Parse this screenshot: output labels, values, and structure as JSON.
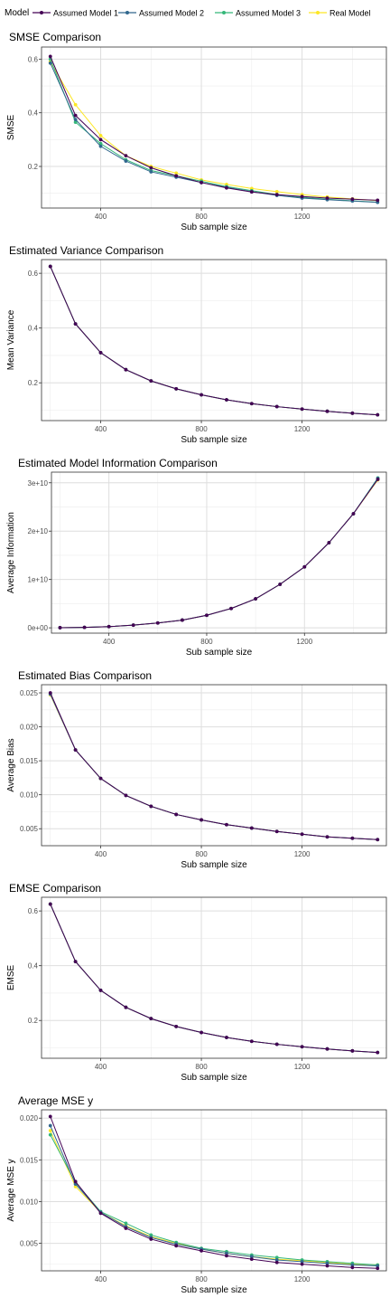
{
  "legend": {
    "title": "Model",
    "items": [
      {
        "label": "Assumed Model 1",
        "color": "#440154"
      },
      {
        "label": "Assumed Model 2",
        "color": "#31688e"
      },
      {
        "label": "Assumed Model 3",
        "color": "#35b779"
      },
      {
        "label": "Real Model",
        "color": "#fde725"
      }
    ]
  },
  "chart_data": [
    {
      "type": "line",
      "title": "SMSE Comparison",
      "xlabel": "Sub sample size",
      "ylabel": "SMSE",
      "xticks": [
        400,
        800,
        1200
      ],
      "yticks": [
        0.2,
        0.4,
        0.6
      ],
      "ytick_labels": [
        "0.2",
        "0.4",
        "0.6"
      ],
      "xlim": [
        165,
        1535
      ],
      "ylim": [
        0.045,
        0.645
      ],
      "x": [
        200,
        300,
        400,
        500,
        600,
        700,
        800,
        900,
        1000,
        1100,
        1200,
        1300,
        1400,
        1500
      ],
      "series": [
        {
          "name": "Assumed Model 1",
          "values": [
            0.61,
            0.39,
            0.3,
            0.24,
            0.195,
            0.165,
            0.14,
            0.12,
            0.105,
            0.095,
            0.088,
            0.082,
            0.078,
            0.074
          ]
        },
        {
          "name": "Assumed Model 2",
          "values": [
            0.585,
            0.375,
            0.275,
            0.22,
            0.18,
            0.16,
            0.14,
            0.122,
            0.106,
            0.092,
            0.082,
            0.076,
            0.071,
            0.066
          ]
        },
        {
          "name": "Assumed Model 3",
          "values": [
            0.6,
            0.365,
            0.285,
            0.225,
            0.185,
            0.165,
            0.145,
            0.125,
            0.11,
            0.095,
            0.085,
            0.078,
            0.072,
            0.067
          ]
        },
        {
          "name": "Real Model",
          "values": [
            0.59,
            0.43,
            0.315,
            0.24,
            0.2,
            0.175,
            0.15,
            0.133,
            0.118,
            0.106,
            0.095,
            0.086,
            0.079,
            0.073
          ]
        }
      ]
    },
    {
      "type": "line",
      "title": "Estimated Variance Comparison",
      "xlabel": "Sub sample size",
      "ylabel": "Mean Variance",
      "xticks": [
        400,
        800,
        1200
      ],
      "yticks": [
        0.2,
        0.4,
        0.6
      ],
      "ytick_labels": [
        "0.2",
        "0.4",
        "0.6"
      ],
      "xlim": [
        165,
        1535
      ],
      "ylim": [
        0.062,
        0.65
      ],
      "x": [
        200,
        300,
        400,
        500,
        600,
        700,
        800,
        900,
        1000,
        1100,
        1200,
        1300,
        1400,
        1500
      ],
      "series": [
        {
          "name": "Assumed Model 1",
          "values": [
            0.625,
            0.415,
            0.31,
            0.248,
            0.207,
            0.178,
            0.156,
            0.138,
            0.124,
            0.113,
            0.104,
            0.096,
            0.089,
            0.083
          ]
        },
        {
          "name": "Assumed Model 2",
          "values": [
            0.625,
            0.415,
            0.31,
            0.248,
            0.207,
            0.178,
            0.156,
            0.138,
            0.124,
            0.113,
            0.104,
            0.096,
            0.089,
            0.083
          ]
        },
        {
          "name": "Assumed Model 3",
          "values": [
            0.625,
            0.415,
            0.31,
            0.248,
            0.207,
            0.178,
            0.156,
            0.138,
            0.124,
            0.113,
            0.104,
            0.096,
            0.089,
            0.083
          ]
        },
        {
          "name": "Real Model",
          "values": [
            0.625,
            0.415,
            0.31,
            0.248,
            0.207,
            0.178,
            0.156,
            0.138,
            0.124,
            0.113,
            0.104,
            0.096,
            0.089,
            0.083
          ]
        }
      ]
    },
    {
      "type": "line",
      "title": "Estimated Model Information Comparison",
      "xlabel": "Sub sample size",
      "ylabel": "Average Information",
      "xticks": [
        400,
        800,
        1200
      ],
      "yticks": [
        0,
        10000000000,
        20000000000,
        30000000000
      ],
      "ytick_labels": [
        "0e+00",
        "1e+10",
        "2e+10",
        "3e+10"
      ],
      "xlim": [
        165,
        1535
      ],
      "ylim": [
        -1100000000,
        32200000000
      ],
      "x": [
        200,
        300,
        400,
        500,
        600,
        700,
        800,
        900,
        1000,
        1100,
        1200,
        1300,
        1400,
        1500
      ],
      "series": [
        {
          "name": "Assumed Model 1",
          "values": [
            30000000,
            90000000,
            250000000,
            550000000,
            1000000000,
            1600000000,
            2600000000,
            4000000000,
            6000000000,
            9000000000,
            12600000000,
            17600000000,
            23600000000,
            30700000000
          ]
        },
        {
          "name": "Assumed Model 2",
          "values": [
            30000000,
            90000000,
            250000000,
            550000000,
            1000000000,
            1600000000,
            2600000000,
            4000000000,
            6000000000,
            9000000000,
            12600000000,
            17600000000,
            23600000000,
            30900000000
          ]
        },
        {
          "name": "Assumed Model 3",
          "values": [
            30000000,
            90000000,
            250000000,
            550000000,
            1000000000,
            1600000000,
            2600000000,
            4000000000,
            6000000000,
            9000000000,
            12600000000,
            17600000000,
            23600000000,
            31000000000
          ]
        },
        {
          "name": "Real Model",
          "values": [
            30000000,
            90000000,
            250000000,
            550000000,
            1000000000,
            1600000000,
            2600000000,
            4000000000,
            6000000000,
            9000000000,
            12600000000,
            17600000000,
            23600000000,
            30600000000
          ]
        }
      ]
    },
    {
      "type": "line",
      "title": "Estimated Bias Comparison",
      "xlabel": "Sub sample size",
      "ylabel": "Average Bias",
      "xticks": [
        400,
        800,
        1200
      ],
      "yticks": [
        0.005,
        0.01,
        0.015,
        0.02,
        0.025
      ],
      "ytick_labels": [
        "0.005",
        "0.010",
        "0.015",
        "0.020",
        "0.025"
      ],
      "xlim": [
        165,
        1535
      ],
      "ylim": [
        0.0025,
        0.0262
      ],
      "x": [
        200,
        300,
        400,
        500,
        600,
        700,
        800,
        900,
        1000,
        1100,
        1200,
        1300,
        1400,
        1500
      ],
      "series": [
        {
          "name": "Assumed Model 1",
          "values": [
            0.025,
            0.0166,
            0.0124,
            0.0099,
            0.0083,
            0.0071,
            0.0063,
            0.0056,
            0.0051,
            0.0046,
            0.0042,
            0.0038,
            0.0036,
            0.0034
          ]
        },
        {
          "name": "Assumed Model 2",
          "values": [
            0.0248,
            0.0166,
            0.0124,
            0.0099,
            0.0083,
            0.0071,
            0.0063,
            0.0056,
            0.0051,
            0.0046,
            0.0042,
            0.0038,
            0.0036,
            0.0034
          ]
        },
        {
          "name": "Assumed Model 3",
          "values": [
            0.0249,
            0.0166,
            0.0124,
            0.0099,
            0.0083,
            0.0071,
            0.0063,
            0.0056,
            0.0051,
            0.0046,
            0.0042,
            0.0038,
            0.0036,
            0.0034
          ]
        },
        {
          "name": "Real Model",
          "values": [
            0.0247,
            0.0166,
            0.0124,
            0.0099,
            0.0083,
            0.0071,
            0.0063,
            0.0056,
            0.0051,
            0.0046,
            0.0042,
            0.0038,
            0.0036,
            0.0034
          ]
        }
      ]
    },
    {
      "type": "line",
      "title": "EMSE Comparison",
      "xlabel": "Sub sample size",
      "ylabel": "EMSE",
      "xticks": [
        400,
        800,
        1200
      ],
      "yticks": [
        0.2,
        0.4,
        0.6
      ],
      "ytick_labels": [
        "0.2",
        "0.4",
        "0.6"
      ],
      "xlim": [
        165,
        1535
      ],
      "ylim": [
        0.062,
        0.65
      ],
      "x": [
        200,
        300,
        400,
        500,
        600,
        700,
        800,
        900,
        1000,
        1100,
        1200,
        1300,
        1400,
        1500
      ],
      "series": [
        {
          "name": "Assumed Model 1",
          "values": [
            0.625,
            0.415,
            0.31,
            0.248,
            0.207,
            0.178,
            0.156,
            0.138,
            0.124,
            0.113,
            0.104,
            0.096,
            0.089,
            0.083
          ]
        },
        {
          "name": "Assumed Model 2",
          "values": [
            0.625,
            0.415,
            0.31,
            0.248,
            0.207,
            0.178,
            0.156,
            0.138,
            0.124,
            0.113,
            0.104,
            0.096,
            0.089,
            0.083
          ]
        },
        {
          "name": "Assumed Model 3",
          "values": [
            0.625,
            0.415,
            0.31,
            0.248,
            0.207,
            0.178,
            0.156,
            0.138,
            0.124,
            0.113,
            0.104,
            0.096,
            0.089,
            0.083
          ]
        },
        {
          "name": "Real Model",
          "values": [
            0.625,
            0.415,
            0.31,
            0.248,
            0.207,
            0.178,
            0.156,
            0.138,
            0.124,
            0.113,
            0.104,
            0.096,
            0.089,
            0.083
          ]
        }
      ]
    },
    {
      "type": "line",
      "title": "Average MSE y",
      "xlabel": "Sub sample size",
      "ylabel": "Average MSE y",
      "xticks": [
        400,
        800,
        1200
      ],
      "yticks": [
        0.005,
        0.01,
        0.015,
        0.02
      ],
      "ytick_labels": [
        "0.005",
        "0.010",
        "0.015",
        "0.020"
      ],
      "xlim": [
        165,
        1535
      ],
      "ylim": [
        0.0017,
        0.021
      ],
      "x": [
        200,
        300,
        400,
        500,
        600,
        700,
        800,
        900,
        1000,
        1100,
        1200,
        1300,
        1400,
        1500
      ],
      "series": [
        {
          "name": "Assumed Model 1",
          "values": [
            0.0202,
            0.0124,
            0.0086,
            0.0068,
            0.0055,
            0.0047,
            0.0041,
            0.0035,
            0.0031,
            0.0027,
            0.0025,
            0.0023,
            0.0021,
            0.002
          ]
        },
        {
          "name": "Assumed Model 2",
          "values": [
            0.0191,
            0.0121,
            0.0087,
            0.007,
            0.0057,
            0.0049,
            0.0043,
            0.0038,
            0.0034,
            0.003,
            0.0028,
            0.0026,
            0.0024,
            0.0023
          ]
        },
        {
          "name": "Assumed Model 3",
          "values": [
            0.018,
            0.0123,
            0.0088,
            0.0074,
            0.006,
            0.0051,
            0.0044,
            0.004,
            0.0036,
            0.0033,
            0.003,
            0.0028,
            0.0026,
            0.0024
          ]
        },
        {
          "name": "Real Model",
          "values": [
            0.0185,
            0.0118,
            0.0087,
            0.0071,
            0.0058,
            0.005,
            0.0043,
            0.0038,
            0.0034,
            0.0031,
            0.0029,
            0.0027,
            0.0025,
            0.0024
          ]
        }
      ]
    }
  ]
}
